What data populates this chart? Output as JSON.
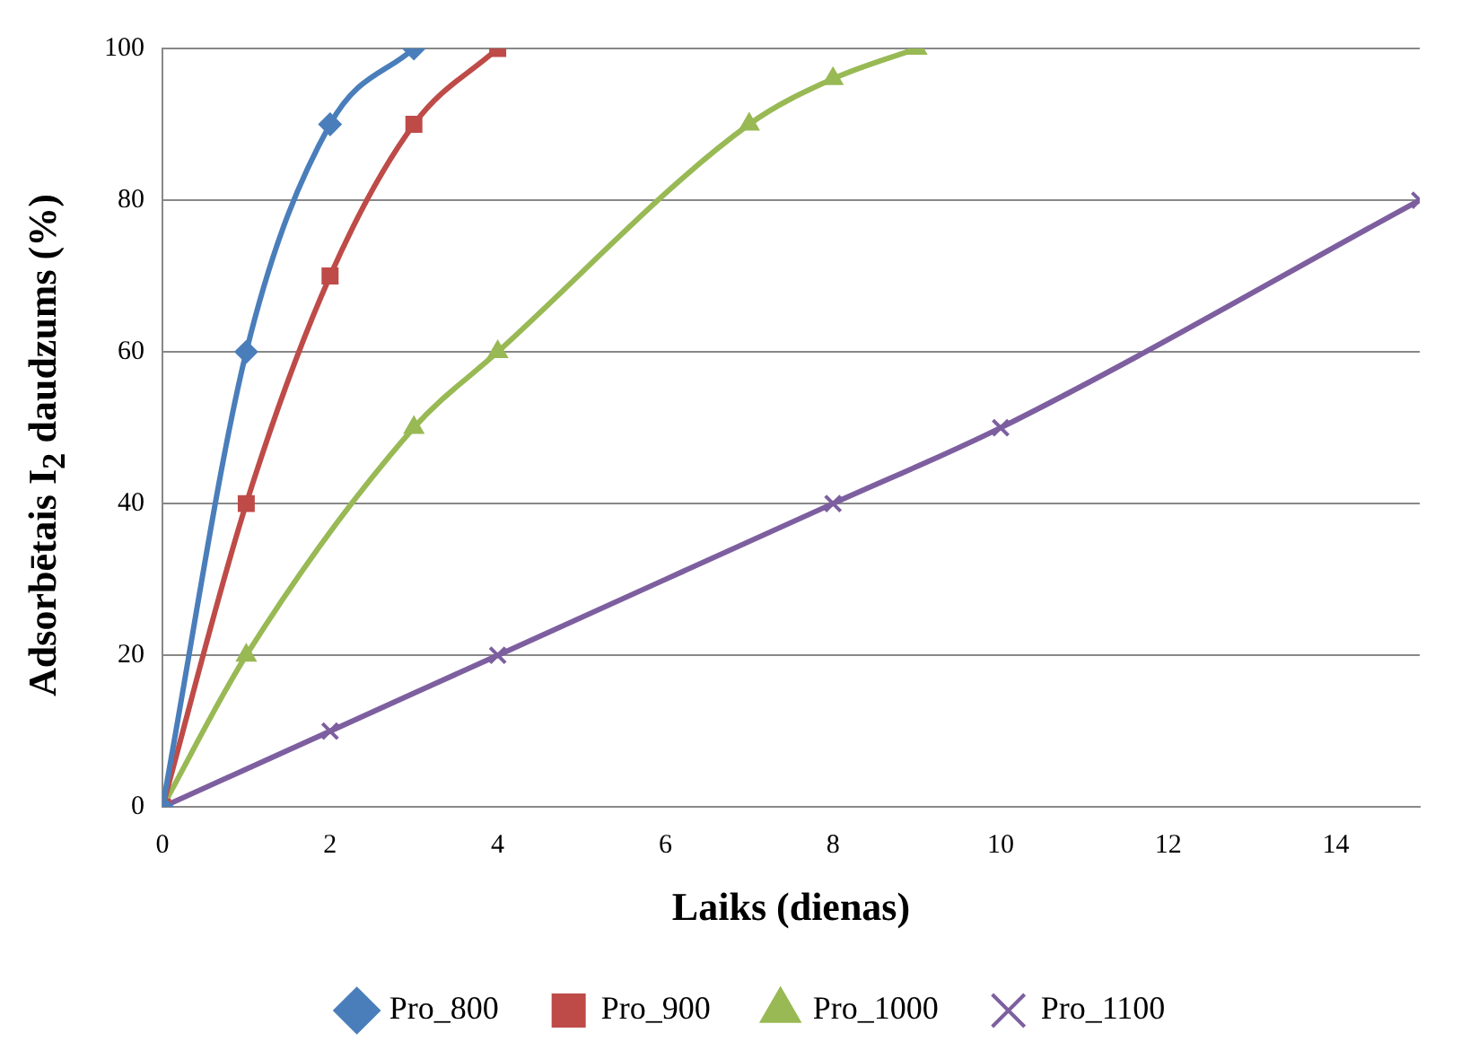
{
  "chart_data": {
    "type": "line",
    "xlabel": "Laiks (dienas)",
    "ylabel": "Adsorbētais I$_{2}$  daudzums (%)",
    "xlim": [
      0,
      15
    ],
    "xticks": [
      0,
      2,
      4,
      6,
      8,
      10,
      12,
      14
    ],
    "ylim": [
      0,
      100
    ],
    "yticks": [
      0,
      20,
      40,
      60,
      80,
      100
    ],
    "grid": "y",
    "legend": "bottom",
    "series": [
      {
        "name": "Pro_800",
        "color": "#4a7ebb",
        "marker": "diamond",
        "x": [
          0,
          1,
          2,
          3
        ],
        "values": [
          0,
          60,
          90,
          100
        ]
      },
      {
        "name": "Pro_900",
        "color": "#be4b48",
        "marker": "square",
        "x": [
          0,
          1,
          2,
          3,
          4
        ],
        "values": [
          0,
          40,
          70,
          90,
          100
        ]
      },
      {
        "name": "Pro_1000",
        "color": "#98b954",
        "marker": "triangle",
        "x": [
          0,
          1,
          3,
          4,
          7,
          8,
          9
        ],
        "values": [
          0,
          20,
          50,
          60,
          90,
          96,
          100
        ]
      },
      {
        "name": "Pro_1100",
        "color": "#7d5fa0",
        "marker": "cross",
        "x": [
          0,
          2,
          4,
          8,
          10,
          15
        ],
        "values": [
          0,
          10,
          20,
          40,
          50,
          80
        ]
      }
    ]
  }
}
